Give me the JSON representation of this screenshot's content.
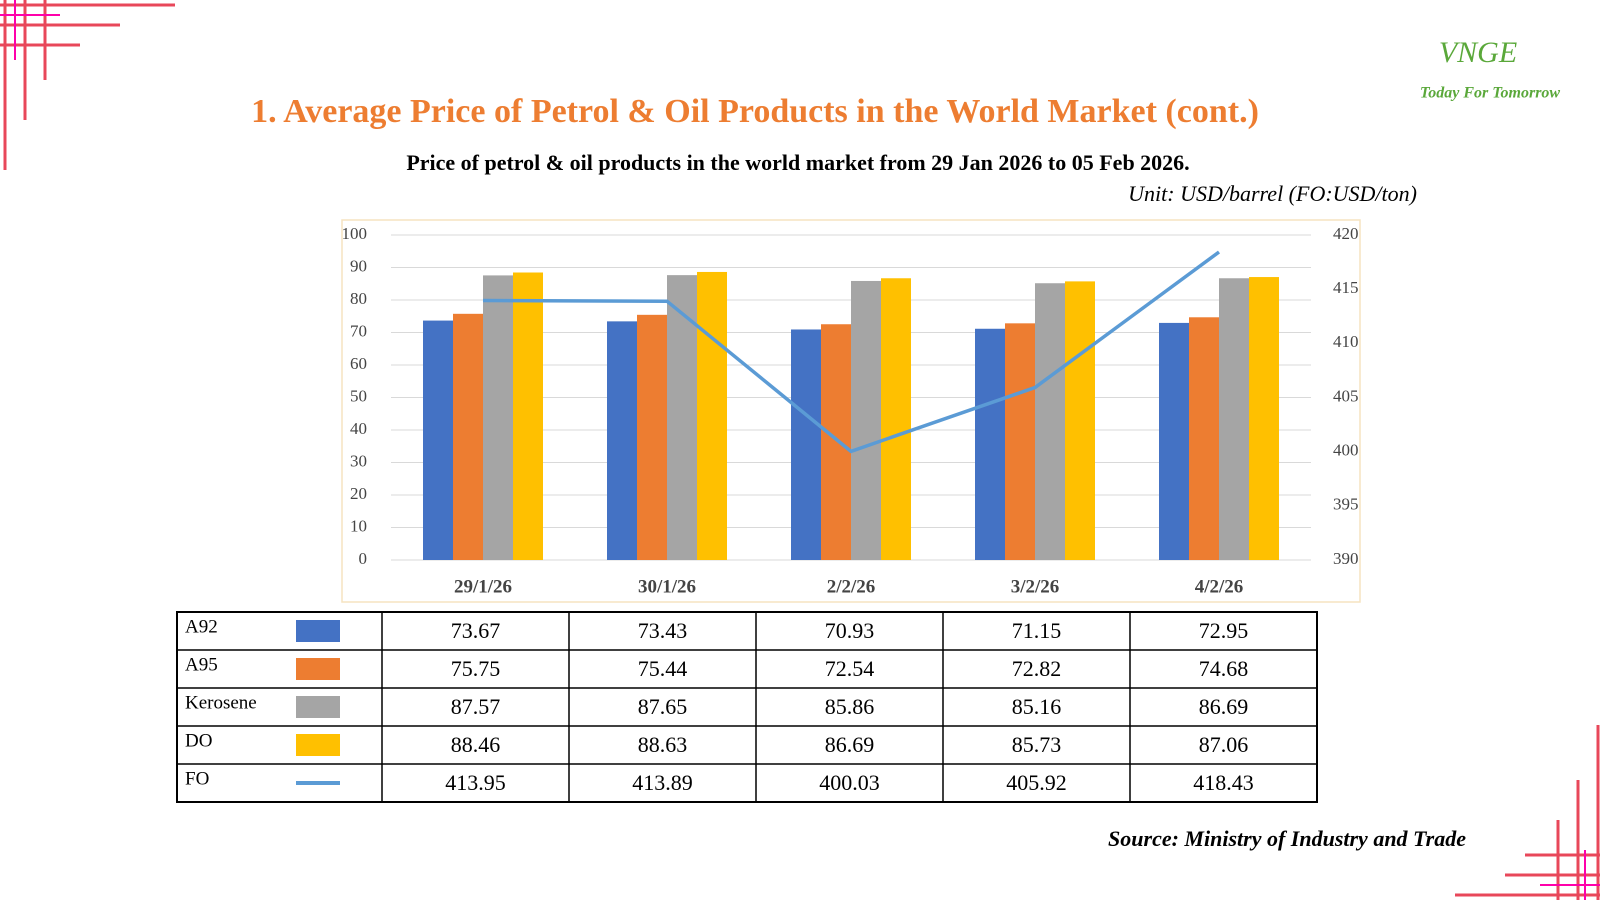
{
  "header": {
    "logo": "VNGE",
    "tagline": "Today For Tomorrow",
    "title": "1. Average Price of Petrol & Oil Products in the World Market (cont.)",
    "source": "Source: Ministry of Industry and Trade"
  },
  "chart_data": {
    "type": "bar",
    "title": "Price of petrol & oil products in the world market from 29 Jan 2026 to 05 Feb 2026.",
    "subtitle": "Unit: USD/barrel (FO:USD/ton)",
    "categories": [
      "29/1/26",
      "30/1/26",
      "2/2/26",
      "3/2/26",
      "4/2/26"
    ],
    "series": [
      {
        "name": "A92",
        "color": "#4472c4",
        "values": [
          73.67,
          73.43,
          70.93,
          71.15,
          72.95
        ]
      },
      {
        "name": "A95",
        "color": "#ed7d31",
        "values": [
          75.75,
          75.44,
          72.54,
          72.82,
          74.68
        ]
      },
      {
        "name": "Kerosene",
        "color": "#a5a5a5",
        "values": [
          87.57,
          87.65,
          85.86,
          85.16,
          86.69
        ]
      },
      {
        "name": "DO",
        "color": "#ffc000",
        "values": [
          88.46,
          88.63,
          86.69,
          85.73,
          87.06
        ]
      },
      {
        "name": "FO",
        "color": "#5b9bd5",
        "type": "line",
        "axis": "y2",
        "values": [
          413.95,
          413.89,
          400.03,
          405.92,
          418.43
        ]
      }
    ],
    "ylim": [
      0,
      100
    ],
    "yticks": [
      0,
      10,
      20,
      30,
      40,
      50,
      60,
      70,
      80,
      90,
      100
    ],
    "y2lim": [
      390,
      420
    ],
    "y2ticks": [
      390,
      395,
      400,
      405,
      410,
      415,
      420
    ],
    "grid": true,
    "data_table": true
  }
}
